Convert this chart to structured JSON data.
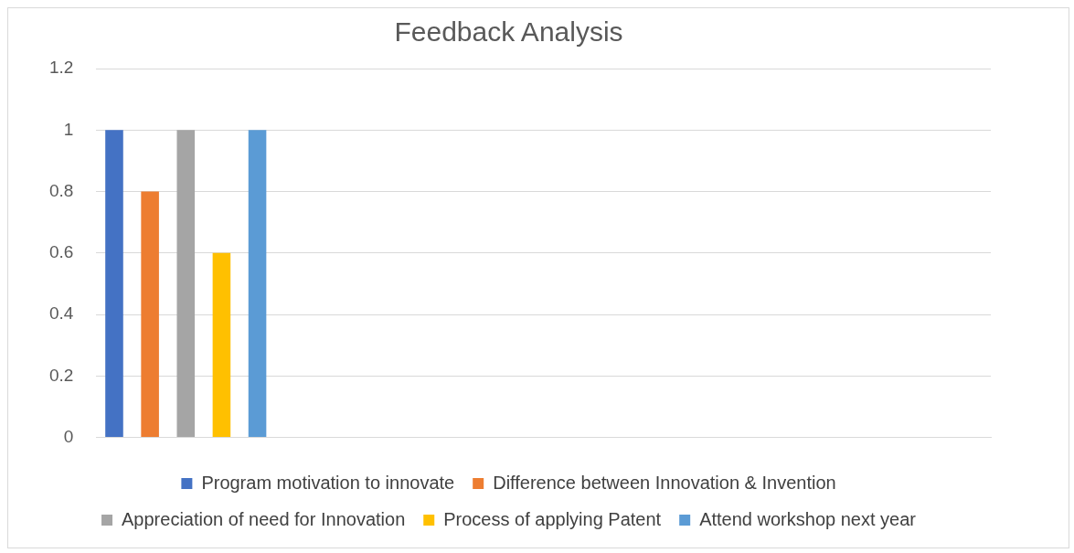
{
  "chart_data": {
    "type": "bar",
    "title": "Feedback Analysis",
    "categories": [
      null,
      null,
      null,
      null,
      null
    ],
    "series": [
      {
        "name": "Program motivation to innovate",
        "color": "#4472c4",
        "values": [
          1,
          null,
          null,
          null,
          null
        ]
      },
      {
        "name": "Difference between Innovation & Invention",
        "color": "#ed7d31",
        "values": [
          0.8,
          null,
          null,
          null,
          null
        ]
      },
      {
        "name": "Appreciation of need for Innovation",
        "color": "#a5a5a5",
        "values": [
          1,
          null,
          null,
          null,
          null
        ]
      },
      {
        "name": "Process of applying Patent",
        "color": "#ffc000",
        "values": [
          0.6,
          null,
          null,
          null,
          null
        ]
      },
      {
        "name": "Attend workshop next year",
        "color": "#5b9bd5",
        "values": [
          1,
          null,
          null,
          null,
          null
        ]
      }
    ],
    "ylim": [
      0,
      1.2
    ],
    "yticks": [
      0,
      0.2,
      0.4,
      0.6,
      0.8,
      1,
      1.2
    ],
    "grid": "y",
    "legend": "bottom"
  }
}
